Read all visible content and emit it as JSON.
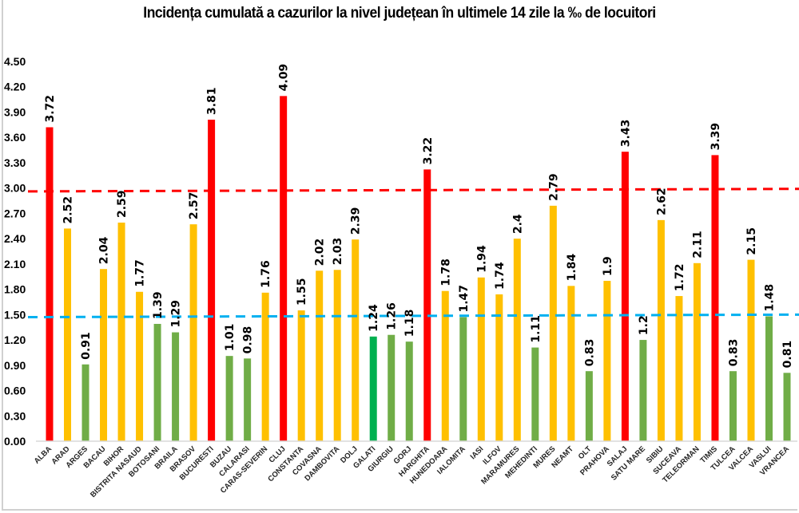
{
  "chart_data": {
    "type": "bar",
    "title": "Incidența cumulată a cazurilor la nivel județean în ultimele 14 zile la ‰ de locuitori",
    "xlabel": "",
    "ylabel": "",
    "ylim": [
      0,
      4.5
    ],
    "yticks": [
      "0.00",
      "0.30",
      "0.60",
      "0.90",
      "1.20",
      "1.50",
      "1.80",
      "2.10",
      "2.40",
      "2.70",
      "3.00",
      "3.30",
      "3.60",
      "3.90",
      "4.20",
      "4.50"
    ],
    "grid": false,
    "legend": "none",
    "categories": [
      "ALBA",
      "ARAD",
      "ARGES",
      "BACAU",
      "BIHOR",
      "BISTRITA NASAUD",
      "BOTOSANI",
      "BRAILA",
      "BRASOV",
      "BUCURESTI",
      "BUZAU",
      "CALARASI",
      "CARAS-SEVERIN",
      "CLUJ",
      "CONSTANTA",
      "COVASNA",
      "DAMBOVITA",
      "DOLJ",
      "GALATI",
      "GIURGIU",
      "GORJ",
      "HARGHITA",
      "HUNEDOARA",
      "IALOMITA",
      "IASI",
      "ILFOV",
      "MARAMURES",
      "MEHEDINTI",
      "MURES",
      "NEAMT",
      "OLT",
      "PRAHOVA",
      "SALAJ",
      "SATU MARE",
      "SIBIU",
      "SUCEAVA",
      "TELEORMAN",
      "TIMIS",
      "TULCEA",
      "VALCEA",
      "VASLUI",
      "VRANCEA"
    ],
    "values": [
      3.72,
      2.52,
      0.91,
      2.04,
      2.59,
      1.77,
      1.39,
      1.29,
      2.57,
      3.81,
      1.01,
      0.98,
      1.76,
      4.09,
      1.55,
      2.02,
      2.03,
      2.39,
      1.24,
      1.26,
      1.18,
      3.22,
      1.78,
      1.47,
      1.94,
      1.74,
      2.4,
      1.11,
      2.79,
      1.84,
      0.83,
      1.9,
      3.43,
      1.2,
      2.62,
      1.72,
      2.11,
      3.39,
      0.83,
      2.15,
      1.48,
      0.81
    ],
    "labels": [
      "3.72",
      "2.52",
      "0.91",
      "2.04",
      "2.59",
      "1.77",
      "1.39",
      "1.29",
      "2.57",
      "3.81",
      "1.01",
      "0.98",
      "1.76",
      "4.09",
      "1.55",
      "2.02",
      "2.03",
      "2.39",
      "1.24",
      "1.26",
      "1.18",
      "3.22",
      "1.78",
      "1.47",
      "1.94",
      "1.74",
      "2.4",
      "1.11",
      "2.79",
      "1.84",
      "0.83",
      "1.9",
      "3.43",
      "1.2",
      "2.62",
      "1.72",
      "2.11",
      "3.39",
      "0.83",
      "2.15",
      "1.48",
      "0.81"
    ],
    "colors": {
      "red": "#ff0000",
      "yellow": "#ffc000",
      "light_green": "#70ad47",
      "green": "#00b050"
    },
    "bar_color_keys": [
      "red",
      "yellow",
      "light_green",
      "yellow",
      "yellow",
      "yellow",
      "light_green",
      "light_green",
      "yellow",
      "red",
      "light_green",
      "light_green",
      "yellow",
      "red",
      "yellow",
      "yellow",
      "yellow",
      "yellow",
      "green",
      "light_green",
      "light_green",
      "red",
      "yellow",
      "light_green",
      "yellow",
      "yellow",
      "yellow",
      "light_green",
      "yellow",
      "yellow",
      "light_green",
      "yellow",
      "red",
      "light_green",
      "yellow",
      "yellow",
      "yellow",
      "red",
      "light_green",
      "yellow",
      "light_green",
      "light_green"
    ],
    "reference_lines": [
      {
        "name": "threshold-3",
        "value_start": 2.96,
        "value_end": 2.99,
        "color": "#ff0000",
        "style": "dashed"
      },
      {
        "name": "threshold-1.5",
        "value_start": 1.47,
        "value_end": 1.5,
        "color": "#00b0f0",
        "style": "dashed"
      }
    ]
  }
}
